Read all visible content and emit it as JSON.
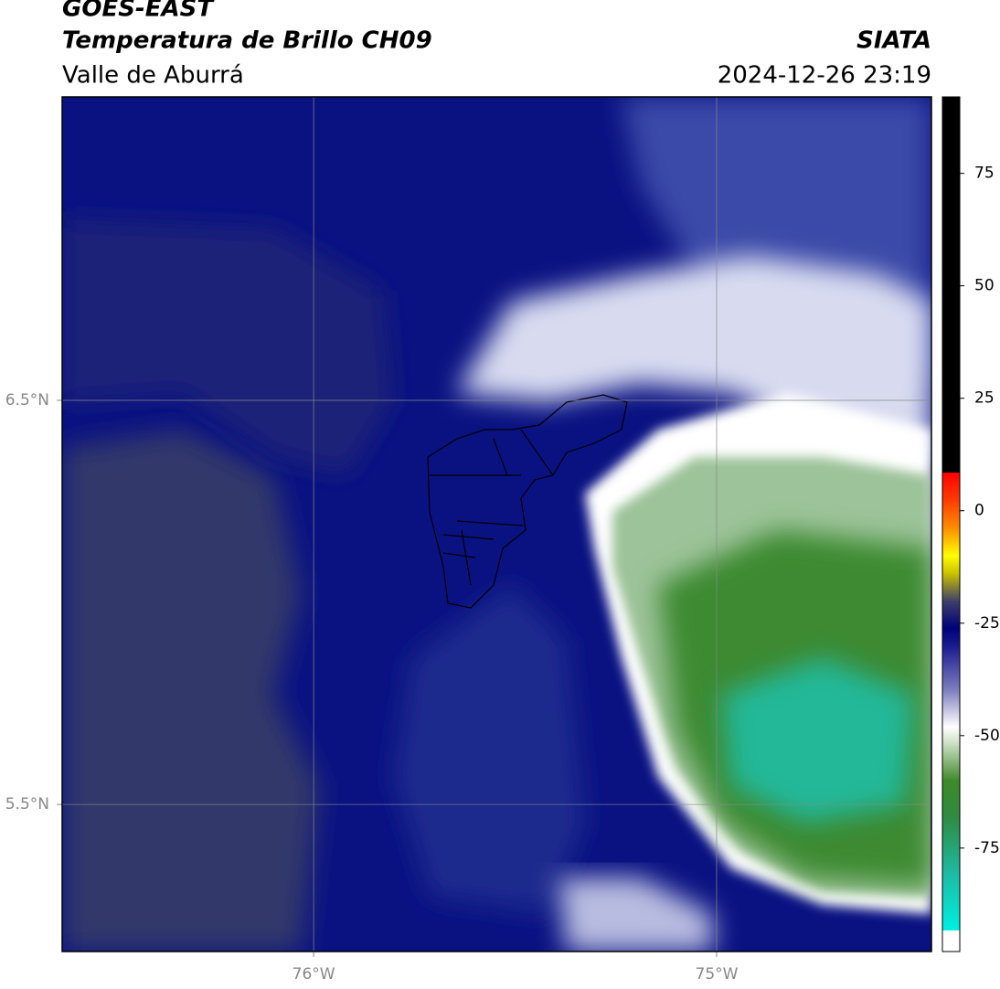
{
  "header": {
    "satellite": "GOES-EAST",
    "product": "Temperatura de Brillo CH09",
    "source": "SIATA",
    "region": "Valle de Aburrá",
    "datetime": "2024-12-26 23:19"
  },
  "map": {
    "xlim": [
      -76.624,
      -74.467
    ],
    "ylim": [
      5.136,
      7.251
    ],
    "xticks": [
      {
        "value": -76,
        "label": "76°W"
      },
      {
        "value": -75,
        "label": "75°W"
      }
    ],
    "yticks": [
      {
        "value": 6.5,
        "label": "6.5°N"
      },
      {
        "value": 5.5,
        "label": "5.5°N"
      }
    ],
    "grid": true
  },
  "colorbar": {
    "lim": [
      -98,
      92
    ],
    "ticks": [
      75,
      50,
      25,
      0,
      -25,
      -50,
      -75
    ],
    "stops": [
      {
        "value": -98,
        "color": "#ffffff"
      },
      {
        "value": -93.3,
        "color": "#ffffff"
      },
      {
        "value": -93.2,
        "color": "#00f0e0"
      },
      {
        "value": -80,
        "color": "#1fb8a0"
      },
      {
        "value": -68,
        "color": "#2e8b40"
      },
      {
        "value": -60,
        "color": "#3e8a28"
      },
      {
        "value": -52,
        "color": "#c8dcc0"
      },
      {
        "value": -48,
        "color": "#ffffff"
      },
      {
        "value": -40,
        "color": "#8080c0"
      },
      {
        "value": -30,
        "color": "#1a1a90"
      },
      {
        "value": -26,
        "color": "#00007a"
      },
      {
        "value": -20,
        "color": "#40406a"
      },
      {
        "value": -14,
        "color": "#c8c000"
      },
      {
        "value": -10,
        "color": "#ffff00"
      },
      {
        "value": -4,
        "color": "#ff9000"
      },
      {
        "value": 2,
        "color": "#ff4000"
      },
      {
        "value": 8.5,
        "color": "#ff0000"
      },
      {
        "value": 8.6,
        "color": "#000000"
      },
      {
        "value": 92,
        "color": "#000000"
      }
    ]
  }
}
